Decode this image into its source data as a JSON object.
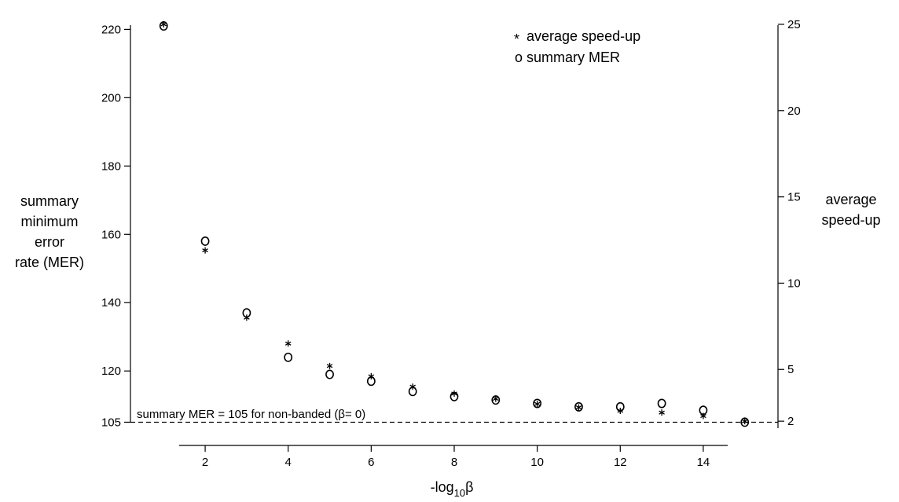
{
  "chart_data": {
    "type": "scatter",
    "xlabel_main": "-log",
    "xlabel_sub": "10",
    "xlabel_symbol": "β",
    "ylabel_left": [
      "summary",
      "minimum",
      "error",
      "rate (MER)"
    ],
    "ylabel_right": [
      "average",
      "speed-up"
    ],
    "x_ticks": [
      2,
      4,
      6,
      8,
      10,
      12,
      14
    ],
    "y_left_ticks": [
      105,
      120,
      140,
      160,
      180,
      200,
      220
    ],
    "y_right_ticks": [
      2,
      5,
      10,
      15,
      20,
      25
    ],
    "xlim": [
      0.2,
      15.8
    ],
    "ylim_left": [
      100.5,
      224
    ],
    "ylim_right": [
      1.05,
      25.5
    ],
    "legend_position": "top-right",
    "legend": [
      {
        "marker": "*",
        "label": "average speed-up"
      },
      {
        "marker": "o",
        "label": "summary MER"
      }
    ],
    "reference_line": {
      "y": 105,
      "style": "dashed",
      "label": "summary MER = 105 for non-banded (β= 0)"
    },
    "series": [
      {
        "name": "summary MER",
        "marker": "o",
        "axis": "left",
        "x": [
          1,
          2,
          3,
          4,
          5,
          6,
          7,
          8,
          9,
          10,
          11,
          12,
          13,
          14,
          15
        ],
        "y": [
          221,
          158,
          137,
          124,
          119,
          117,
          114,
          112.5,
          111.5,
          110.5,
          109.5,
          109.5,
          110.5,
          108.5,
          105
        ]
      },
      {
        "name": "average speed-up",
        "marker": "*",
        "axis": "right",
        "x": [
          1,
          2,
          3,
          4,
          5,
          6,
          7,
          8,
          9,
          10,
          11,
          12,
          13,
          14,
          15
        ],
        "y": [
          25,
          11.9,
          8.0,
          6.5,
          5.2,
          4.6,
          4.0,
          3.6,
          3.3,
          3.0,
          2.8,
          2.6,
          2.5,
          2.3,
          2.0
        ]
      }
    ]
  }
}
